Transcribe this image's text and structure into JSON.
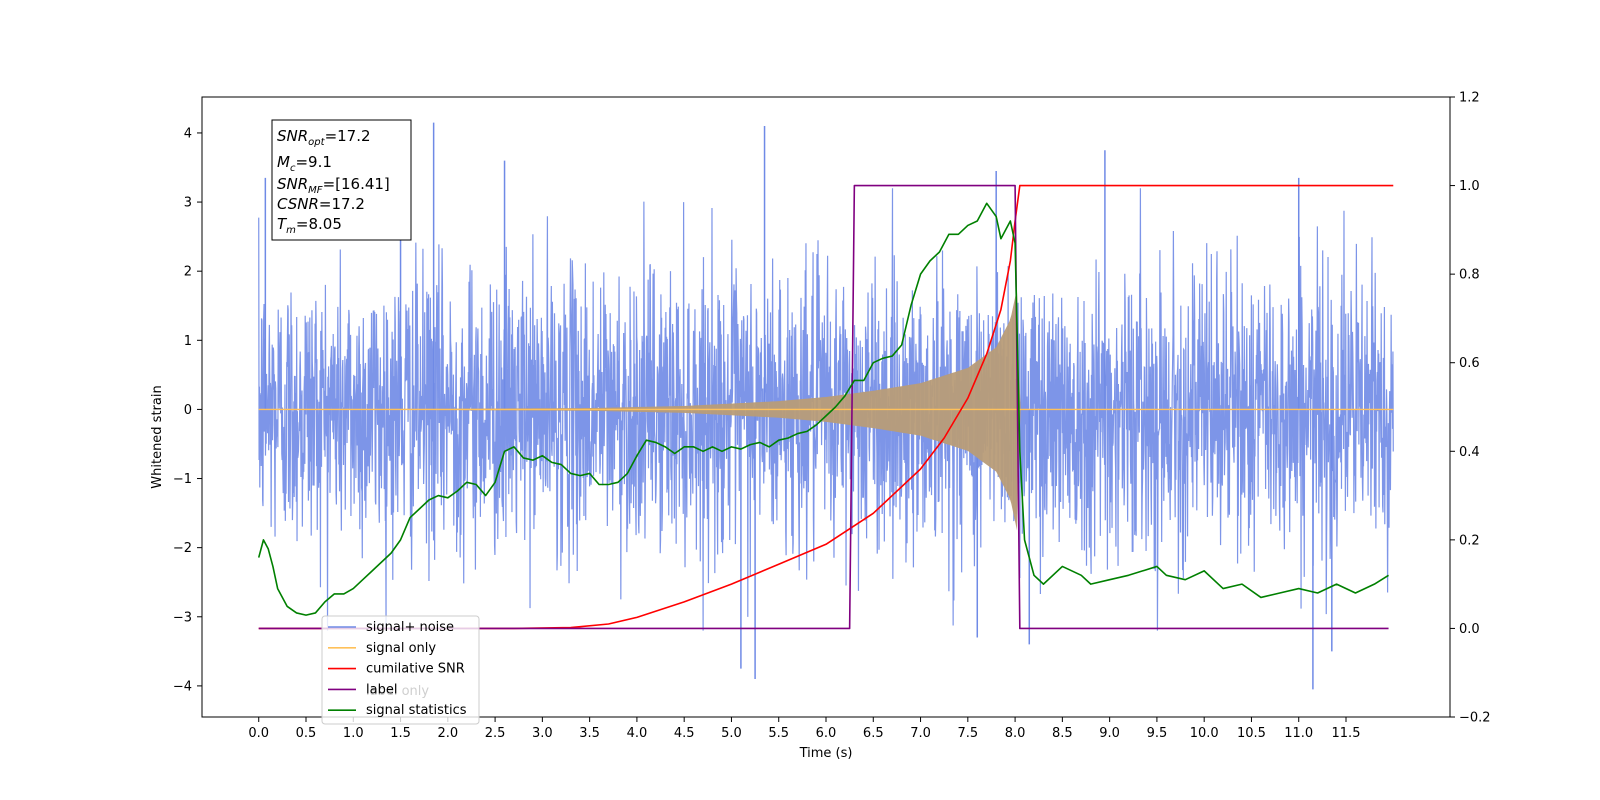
{
  "chart_data": {
    "type": "line",
    "xlabel": "Time (s)",
    "ylabel": "Whitened strain",
    "xlim": [
      -0.6,
      12.6
    ],
    "ylim": [
      -4.45,
      4.52
    ],
    "y2lim": [
      -0.2,
      1.2
    ],
    "x_ticks": [
      "0.0",
      "0.5",
      "1.0",
      "1.5",
      "2.0",
      "2.5",
      "3.0",
      "3.5",
      "4.0",
      "4.5",
      "5.0",
      "5.5",
      "6.0",
      "6.5",
      "7.0",
      "7.5",
      "8.0",
      "8.5",
      "9.0",
      "9.5",
      "10.0",
      "10.5",
      "11.0",
      "11.5"
    ],
    "y_ticks": [
      "4",
      "3",
      "2",
      "1",
      "0",
      "−1",
      "−2",
      "−3",
      "−4"
    ],
    "y2_ticks": [
      "1.2",
      "1.0",
      "0.8",
      "0.6",
      "0.4",
      "0.2",
      "0.0",
      "−0.2"
    ],
    "grid": false,
    "legend_position": "lower-left",
    "info_box": {
      "line1_main": "SNR",
      "line1_sub": "opt",
      "line1_val": "=17.2",
      "line2_main": "M",
      "line2_sub": "c",
      "line2_val": "=9.1",
      "line3_main": "SNR",
      "line3_sub": "MF",
      "line3_val": "=[16.41]",
      "line4_main": "CSNR",
      "line4_val": "=17.2",
      "line5_main": "T",
      "line5_sub": "m",
      "line5_val": "=8.05"
    },
    "legend": [
      {
        "label": "signal+ noise",
        "color": "#6f8ae6"
      },
      {
        "label": "signal only",
        "color": "#ffc15a"
      },
      {
        "label": "cumilative SNR",
        "color": "#ff0000"
      },
      {
        "label": "label",
        "color": "#800080",
        "ghost": "label only"
      },
      {
        "label": "signal statistics",
        "color": "#008000"
      }
    ],
    "series": [
      {
        "name": "signal+ noise",
        "axis": "left",
        "color": "#6f8ae6",
        "x_range": [
          0.0,
          12.0
        ],
        "envelope_1sigma": 1.0,
        "notable_peaks": [
          {
            "x": 0.07,
            "y": 3.35
          },
          {
            "x": 1.5,
            "y": 4.0
          },
          {
            "x": 1.85,
            "y": 4.15
          },
          {
            "x": 2.6,
            "y": 3.6
          },
          {
            "x": 5.35,
            "y": 4.1
          },
          {
            "x": 7.8,
            "y": 3.45
          },
          {
            "x": 8.95,
            "y": 3.75
          },
          {
            "x": 11.0,
            "y": 3.35
          },
          {
            "x": 5.1,
            "y": -3.75
          },
          {
            "x": 5.25,
            "y": -3.9
          },
          {
            "x": 11.15,
            "y": -4.05
          },
          {
            "x": 11.35,
            "y": -3.5
          },
          {
            "x": 8.15,
            "y": -3.4
          },
          {
            "x": 7.6,
            "y": -3.3
          }
        ]
      },
      {
        "name": "signal only",
        "axis": "left",
        "color": "#ffc15a",
        "envelope": [
          {
            "x": 0.0,
            "y": 0.0
          },
          {
            "x": 2.0,
            "y": 0.01
          },
          {
            "x": 3.5,
            "y": 0.02
          },
          {
            "x": 4.5,
            "y": 0.05
          },
          {
            "x": 5.5,
            "y": 0.12
          },
          {
            "x": 6.0,
            "y": 0.18
          },
          {
            "x": 6.5,
            "y": 0.27
          },
          {
            "x": 7.0,
            "y": 0.38
          },
          {
            "x": 7.5,
            "y": 0.6
          },
          {
            "x": 7.8,
            "y": 0.9
          },
          {
            "x": 7.95,
            "y": 1.3
          },
          {
            "x": 8.02,
            "y": 1.75
          },
          {
            "x": 8.05,
            "y": 0.0
          },
          {
            "x": 12.0,
            "y": 0.0
          }
        ]
      },
      {
        "name": "cumilative SNR",
        "axis": "right",
        "color": "#ff0000",
        "points": [
          {
            "x": 0.0,
            "y": 0.0
          },
          {
            "x": 2.7,
            "y": 0.0
          },
          {
            "x": 3.3,
            "y": 0.002
          },
          {
            "x": 3.7,
            "y": 0.01
          },
          {
            "x": 4.0,
            "y": 0.025
          },
          {
            "x": 4.5,
            "y": 0.06
          },
          {
            "x": 5.0,
            "y": 0.1
          },
          {
            "x": 5.5,
            "y": 0.145
          },
          {
            "x": 6.0,
            "y": 0.19
          },
          {
            "x": 6.5,
            "y": 0.26
          },
          {
            "x": 7.0,
            "y": 0.36
          },
          {
            "x": 7.25,
            "y": 0.43
          },
          {
            "x": 7.5,
            "y": 0.52
          },
          {
            "x": 7.7,
            "y": 0.62
          },
          {
            "x": 7.85,
            "y": 0.72
          },
          {
            "x": 7.95,
            "y": 0.83
          },
          {
            "x": 8.0,
            "y": 0.92
          },
          {
            "x": 8.05,
            "y": 1.0
          },
          {
            "x": 12.0,
            "y": 1.0
          }
        ]
      },
      {
        "name": "label",
        "axis": "right",
        "color": "#800080",
        "points": [
          {
            "x": 0.0,
            "y": 0.0
          },
          {
            "x": 6.25,
            "y": 0.0
          },
          {
            "x": 6.3,
            "y": 1.0
          },
          {
            "x": 8.0,
            "y": 1.0
          },
          {
            "x": 8.05,
            "y": 0.0
          },
          {
            "x": 11.95,
            "y": 0.0
          }
        ]
      },
      {
        "name": "signal statistics",
        "axis": "right",
        "color": "#008000",
        "points": [
          {
            "x": 0.0,
            "y": 0.16
          },
          {
            "x": 0.05,
            "y": 0.2
          },
          {
            "x": 0.1,
            "y": 0.18
          },
          {
            "x": 0.15,
            "y": 0.14
          },
          {
            "x": 0.2,
            "y": 0.09
          },
          {
            "x": 0.3,
            "y": 0.05
          },
          {
            "x": 0.4,
            "y": 0.035
          },
          {
            "x": 0.5,
            "y": 0.03
          },
          {
            "x": 0.6,
            "y": 0.035
          },
          {
            "x": 0.7,
            "y": 0.06
          },
          {
            "x": 0.8,
            "y": 0.078
          },
          {
            "x": 0.9,
            "y": 0.078
          },
          {
            "x": 1.0,
            "y": 0.09
          },
          {
            "x": 1.1,
            "y": 0.11
          },
          {
            "x": 1.2,
            "y": 0.13
          },
          {
            "x": 1.3,
            "y": 0.15
          },
          {
            "x": 1.4,
            "y": 0.17
          },
          {
            "x": 1.5,
            "y": 0.2
          },
          {
            "x": 1.6,
            "y": 0.25
          },
          {
            "x": 1.7,
            "y": 0.27
          },
          {
            "x": 1.8,
            "y": 0.29
          },
          {
            "x": 1.9,
            "y": 0.3
          },
          {
            "x": 2.0,
            "y": 0.295
          },
          {
            "x": 2.1,
            "y": 0.31
          },
          {
            "x": 2.2,
            "y": 0.33
          },
          {
            "x": 2.3,
            "y": 0.325
          },
          {
            "x": 2.4,
            "y": 0.3
          },
          {
            "x": 2.5,
            "y": 0.33
          },
          {
            "x": 2.6,
            "y": 0.4
          },
          {
            "x": 2.7,
            "y": 0.41
          },
          {
            "x": 2.8,
            "y": 0.385
          },
          {
            "x": 2.9,
            "y": 0.38
          },
          {
            "x": 3.0,
            "y": 0.39
          },
          {
            "x": 3.1,
            "y": 0.375
          },
          {
            "x": 3.2,
            "y": 0.37
          },
          {
            "x": 3.3,
            "y": 0.35
          },
          {
            "x": 3.4,
            "y": 0.345
          },
          {
            "x": 3.5,
            "y": 0.35
          },
          {
            "x": 3.6,
            "y": 0.325
          },
          {
            "x": 3.7,
            "y": 0.325
          },
          {
            "x": 3.8,
            "y": 0.33
          },
          {
            "x": 3.9,
            "y": 0.35
          },
          {
            "x": 4.0,
            "y": 0.39
          },
          {
            "x": 4.1,
            "y": 0.425
          },
          {
            "x": 4.2,
            "y": 0.42
          },
          {
            "x": 4.3,
            "y": 0.41
          },
          {
            "x": 4.4,
            "y": 0.395
          },
          {
            "x": 4.5,
            "y": 0.41
          },
          {
            "x": 4.6,
            "y": 0.41
          },
          {
            "x": 4.7,
            "y": 0.4
          },
          {
            "x": 4.8,
            "y": 0.41
          },
          {
            "x": 4.9,
            "y": 0.4
          },
          {
            "x": 5.0,
            "y": 0.41
          },
          {
            "x": 5.1,
            "y": 0.405
          },
          {
            "x": 5.2,
            "y": 0.415
          },
          {
            "x": 5.3,
            "y": 0.42
          },
          {
            "x": 5.4,
            "y": 0.41
          },
          {
            "x": 5.5,
            "y": 0.425
          },
          {
            "x": 5.6,
            "y": 0.43
          },
          {
            "x": 5.7,
            "y": 0.44
          },
          {
            "x": 5.8,
            "y": 0.445
          },
          {
            "x": 5.9,
            "y": 0.46
          },
          {
            "x": 6.0,
            "y": 0.48
          },
          {
            "x": 6.1,
            "y": 0.5
          },
          {
            "x": 6.2,
            "y": 0.525
          },
          {
            "x": 6.3,
            "y": 0.56
          },
          {
            "x": 6.4,
            "y": 0.56
          },
          {
            "x": 6.5,
            "y": 0.6
          },
          {
            "x": 6.6,
            "y": 0.61
          },
          {
            "x": 6.7,
            "y": 0.615
          },
          {
            "x": 6.8,
            "y": 0.64
          },
          {
            "x": 6.9,
            "y": 0.73
          },
          {
            "x": 7.0,
            "y": 0.8
          },
          {
            "x": 7.1,
            "y": 0.83
          },
          {
            "x": 7.2,
            "y": 0.85
          },
          {
            "x": 7.3,
            "y": 0.89
          },
          {
            "x": 7.4,
            "y": 0.89
          },
          {
            "x": 7.5,
            "y": 0.91
          },
          {
            "x": 7.6,
            "y": 0.92
          },
          {
            "x": 7.7,
            "y": 0.96
          },
          {
            "x": 7.8,
            "y": 0.93
          },
          {
            "x": 7.85,
            "y": 0.88
          },
          {
            "x": 7.95,
            "y": 0.92
          },
          {
            "x": 8.0,
            "y": 0.87
          },
          {
            "x": 8.05,
            "y": 0.4
          },
          {
            "x": 8.1,
            "y": 0.2
          },
          {
            "x": 8.2,
            "y": 0.12
          },
          {
            "x": 8.3,
            "y": 0.1
          },
          {
            "x": 8.5,
            "y": 0.14
          },
          {
            "x": 8.7,
            "y": 0.12
          },
          {
            "x": 8.8,
            "y": 0.1
          },
          {
            "x": 9.0,
            "y": 0.11
          },
          {
            "x": 9.2,
            "y": 0.12
          },
          {
            "x": 9.5,
            "y": 0.14
          },
          {
            "x": 9.6,
            "y": 0.12
          },
          {
            "x": 9.8,
            "y": 0.11
          },
          {
            "x": 10.0,
            "y": 0.13
          },
          {
            "x": 10.2,
            "y": 0.09
          },
          {
            "x": 10.4,
            "y": 0.1
          },
          {
            "x": 10.6,
            "y": 0.07
          },
          {
            "x": 10.8,
            "y": 0.08
          },
          {
            "x": 11.0,
            "y": 0.09
          },
          {
            "x": 11.2,
            "y": 0.08
          },
          {
            "x": 11.4,
            "y": 0.1
          },
          {
            "x": 11.6,
            "y": 0.08
          },
          {
            "x": 11.8,
            "y": 0.1
          },
          {
            "x": 11.95,
            "y": 0.12
          }
        ]
      }
    ]
  }
}
